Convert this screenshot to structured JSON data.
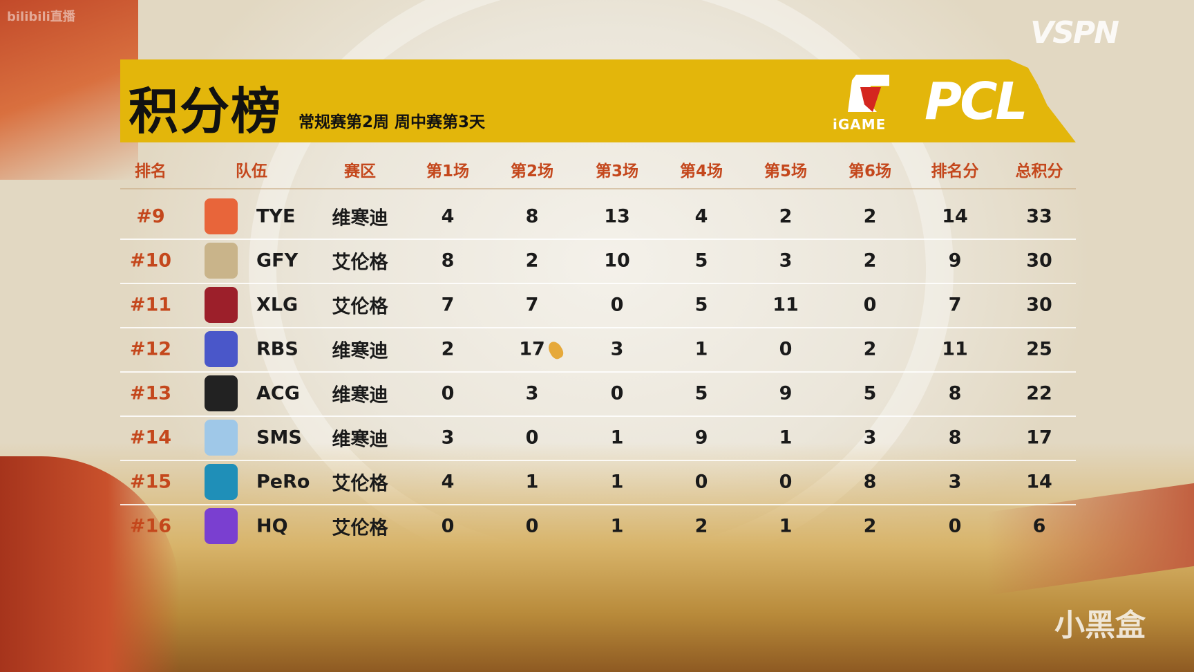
{
  "watermarks": {
    "bilibili": "bilibili直播",
    "vspn": "VSPN",
    "xiaoheihe": "小黑盒"
  },
  "header": {
    "title": "积分榜",
    "subtitle": "常规赛第2周 周中赛第3天",
    "sponsor_logo": "iGAME",
    "league_logo": "PCL"
  },
  "colors": {
    "banner": "#e3b60b",
    "header_text": "#c4471c",
    "rank_text": "#c4471c"
  },
  "columns": [
    "排名",
    "队伍",
    "赛区",
    "第1场",
    "第2场",
    "第3场",
    "第4场",
    "第5场",
    "第6场",
    "排名分",
    "总积分"
  ],
  "rows": [
    {
      "rank": "#9",
      "team": "TYE",
      "region": "维寒迪",
      "g1": "4",
      "g2": "8",
      "g3": "13",
      "g4": "4",
      "g5": "2",
      "g6": "2",
      "placement": "14",
      "total": "33",
      "logo_color": "#e8653a"
    },
    {
      "rank": "#10",
      "team": "GFY",
      "region": "艾伦格",
      "g1": "8",
      "g2": "2",
      "g3": "10",
      "g4": "5",
      "g5": "3",
      "g6": "2",
      "placement": "9",
      "total": "30",
      "logo_color": "#c9b48a"
    },
    {
      "rank": "#11",
      "team": "XLG",
      "region": "艾伦格",
      "g1": "7",
      "g2": "7",
      "g3": "0",
      "g4": "5",
      "g5": "11",
      "g6": "0",
      "placement": "7",
      "total": "30",
      "logo_color": "#9c1f2a"
    },
    {
      "rank": "#12",
      "team": "RBS",
      "region": "维寒迪",
      "g1": "2",
      "g2": "17",
      "g2_icon": "chicken-dinner-icon",
      "g3": "3",
      "g4": "1",
      "g5": "0",
      "g6": "2",
      "placement": "11",
      "total": "25",
      "logo_color": "#4a57c9"
    },
    {
      "rank": "#13",
      "team": "ACG",
      "region": "维寒迪",
      "g1": "0",
      "g2": "3",
      "g3": "0",
      "g4": "5",
      "g5": "9",
      "g6": "5",
      "placement": "8",
      "total": "22",
      "logo_color": "#222222"
    },
    {
      "rank": "#14",
      "team": "SMS",
      "region": "维寒迪",
      "g1": "3",
      "g2": "0",
      "g3": "1",
      "g4": "9",
      "g5": "1",
      "g6": "3",
      "placement": "8",
      "total": "17",
      "logo_color": "#9fc8e8"
    },
    {
      "rank": "#15",
      "team": "PeRo",
      "region": "艾伦格",
      "g1": "4",
      "g2": "1",
      "g3": "1",
      "g4": "0",
      "g5": "0",
      "g6": "8",
      "placement": "3",
      "total": "14",
      "logo_color": "#1f8fb8"
    },
    {
      "rank": "#16",
      "team": "HQ",
      "region": "艾伦格",
      "g1": "0",
      "g2": "0",
      "g3": "1",
      "g4": "2",
      "g5": "1",
      "g6": "2",
      "placement": "0",
      "total": "6",
      "logo_color": "#7a3fd0"
    }
  ]
}
